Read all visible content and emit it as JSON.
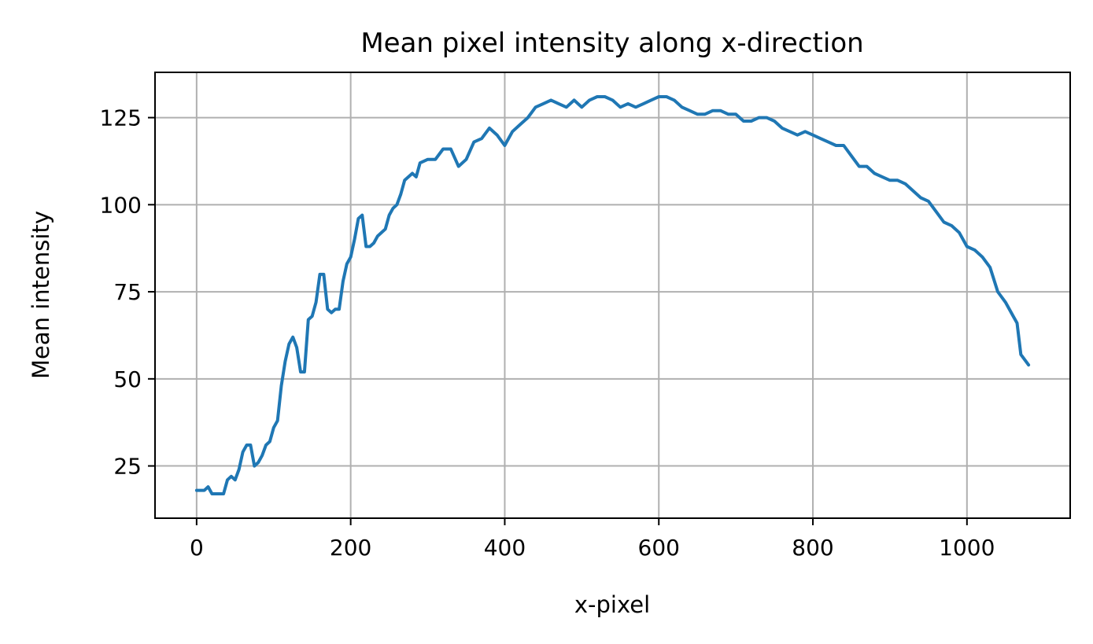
{
  "chart_data": {
    "type": "line",
    "title": "Mean pixel intensity along x-direction",
    "xlabel": "x-pixel",
    "ylabel": "Mean intensity",
    "xlim": [
      -54,
      1134
    ],
    "ylim": [
      10,
      138
    ],
    "xticks": [
      0,
      200,
      400,
      600,
      800,
      1000
    ],
    "yticks": [
      25,
      50,
      75,
      100,
      125
    ],
    "grid": true,
    "colors": {
      "line": "#1f77b4",
      "grid": "#b0b0b0",
      "axes": "#000000"
    },
    "series": [
      {
        "x": [
          0,
          10,
          15,
          20,
          25,
          30,
          35,
          40,
          45,
          50,
          55,
          60,
          65,
          70,
          75,
          80,
          85,
          90,
          95,
          100,
          105,
          110,
          115,
          120,
          125,
          130,
          135,
          140,
          145,
          150,
          155,
          160,
          165,
          170,
          175,
          180,
          185,
          190,
          195,
          200,
          205,
          210,
          215,
          220,
          225,
          230,
          235,
          240,
          245,
          250,
          255,
          260,
          265,
          270,
          275,
          280,
          285,
          290,
          300,
          310,
          320,
          330,
          340,
          350,
          360,
          370,
          380,
          390,
          400,
          410,
          420,
          430,
          440,
          450,
          460,
          470,
          480,
          490,
          500,
          510,
          520,
          530,
          540,
          550,
          560,
          570,
          580,
          590,
          600,
          610,
          620,
          630,
          640,
          650,
          660,
          670,
          680,
          690,
          700,
          710,
          720,
          730,
          740,
          750,
          760,
          770,
          780,
          790,
          800,
          810,
          820,
          830,
          840,
          850,
          860,
          870,
          880,
          890,
          900,
          910,
          920,
          930,
          940,
          950,
          960,
          970,
          980,
          990,
          1000,
          1010,
          1020,
          1030,
          1040,
          1050,
          1060,
          1065,
          1070,
          1080
        ],
        "y": [
          18,
          18,
          19,
          17,
          17,
          17,
          17,
          21,
          22,
          21,
          24,
          29,
          31,
          31,
          25,
          26,
          28,
          31,
          32,
          36,
          38,
          48,
          55,
          60,
          62,
          59,
          52,
          52,
          67,
          68,
          72,
          80,
          80,
          70,
          69,
          70,
          70,
          78,
          83,
          85,
          90,
          96,
          97,
          88,
          88,
          89,
          91,
          92,
          93,
          97,
          99,
          100,
          103,
          107,
          108,
          109,
          108,
          112,
          113,
          113,
          116,
          116,
          111,
          113,
          118,
          119,
          122,
          120,
          117,
          121,
          123,
          125,
          128,
          129,
          130,
          129,
          128,
          130,
          128,
          130,
          131,
          131,
          130,
          128,
          129,
          128,
          129,
          130,
          131,
          131,
          130,
          128,
          127,
          126,
          126,
          127,
          127,
          126,
          126,
          124,
          124,
          125,
          125,
          124,
          122,
          121,
          120,
          121,
          120,
          119,
          118,
          117,
          117,
          114,
          111,
          111,
          109,
          108,
          107,
          107,
          106,
          104,
          102,
          101,
          98,
          95,
          94,
          92,
          88,
          87,
          85,
          82,
          75,
          72,
          68,
          66,
          57,
          54
        ]
      }
    ]
  }
}
